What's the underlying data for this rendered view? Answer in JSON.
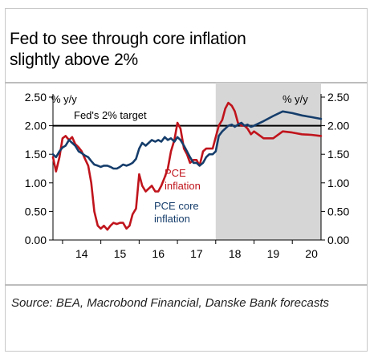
{
  "title_lines": [
    "Fed to see through core inflation",
    "slightly above 2%"
  ],
  "source": "Source: BEA, Macrobond Financial, Danske Bank forecasts",
  "chart_data": {
    "type": "line",
    "left_axis_label": "% y/y",
    "right_axis_label": "% y/y",
    "ylim": [
      0,
      2.5
    ],
    "y_ticks": [
      "0.00",
      "0.50",
      "1.00",
      "1.50",
      "2.00",
      "2.50"
    ],
    "x_ticks": [
      "14",
      "15",
      "16",
      "17",
      "18",
      "19",
      "20"
    ],
    "xlim": [
      2013.75,
      2020.75
    ],
    "forecast_start": 2018.0,
    "grid": false,
    "reference_line": {
      "value": 2.0,
      "label": "Fed's 2% target"
    },
    "series": [
      {
        "name": "PCE inflation",
        "name_lines": [
          "PCE",
          "inflation"
        ],
        "color": "#c0141c",
        "x": [
          2013.75,
          2013.83,
          2013.92,
          2014.0,
          2014.08,
          2014.17,
          2014.25,
          2014.33,
          2014.42,
          2014.5,
          2014.58,
          2014.67,
          2014.75,
          2014.83,
          2014.92,
          2015.0,
          2015.08,
          2015.17,
          2015.25,
          2015.33,
          2015.42,
          2015.5,
          2015.58,
          2015.67,
          2015.75,
          2015.83,
          2015.92,
          2016.0,
          2016.08,
          2016.17,
          2016.25,
          2016.33,
          2016.42,
          2016.5,
          2016.58,
          2016.67,
          2016.75,
          2016.83,
          2016.92,
          2017.0,
          2017.08,
          2017.17,
          2017.25,
          2017.33,
          2017.42,
          2017.5,
          2017.58,
          2017.67,
          2017.75,
          2017.83,
          2017.92,
          2018.0,
          2018.08,
          2018.17,
          2018.25,
          2018.33,
          2018.42,
          2018.5,
          2018.58,
          2018.67,
          2018.75,
          2018.83,
          2018.92,
          2019.0,
          2019.25,
          2019.5,
          2019.75,
          2020.0,
          2020.25,
          2020.5,
          2020.75
        ],
        "values": [
          1.45,
          1.2,
          1.45,
          1.78,
          1.82,
          1.75,
          1.8,
          1.68,
          1.62,
          1.55,
          1.43,
          1.3,
          1.0,
          0.5,
          0.25,
          0.2,
          0.25,
          0.18,
          0.25,
          0.3,
          0.28,
          0.3,
          0.3,
          0.2,
          0.25,
          0.45,
          0.55,
          1.15,
          0.95,
          0.85,
          0.9,
          0.95,
          0.85,
          0.85,
          0.95,
          1.1,
          1.25,
          1.55,
          1.75,
          2.05,
          1.95,
          1.6,
          1.5,
          1.35,
          1.4,
          1.4,
          1.3,
          1.55,
          1.6,
          1.6,
          1.6,
          1.8,
          2.0,
          2.1,
          2.3,
          2.4,
          2.35,
          2.25,
          2.05,
          2.0,
          2.0,
          1.95,
          1.85,
          1.9,
          1.78,
          1.78,
          1.9,
          1.88,
          1.85,
          1.84,
          1.82
        ]
      },
      {
        "name": "PCE core inflation",
        "name_lines": [
          "PCE core",
          "inflation"
        ],
        "color": "#153d6b",
        "x": [
          2013.75,
          2013.83,
          2013.92,
          2014.0,
          2014.08,
          2014.17,
          2014.25,
          2014.33,
          2014.42,
          2014.5,
          2014.58,
          2014.67,
          2014.75,
          2014.83,
          2014.92,
          2015.0,
          2015.08,
          2015.17,
          2015.25,
          2015.33,
          2015.42,
          2015.5,
          2015.58,
          2015.67,
          2015.75,
          2015.83,
          2015.92,
          2016.0,
          2016.08,
          2016.17,
          2016.25,
          2016.33,
          2016.42,
          2016.5,
          2016.58,
          2016.67,
          2016.75,
          2016.83,
          2016.92,
          2017.0,
          2017.08,
          2017.17,
          2017.25,
          2017.33,
          2017.42,
          2017.5,
          2017.58,
          2017.67,
          2017.75,
          2017.83,
          2017.92,
          2018.0,
          2018.08,
          2018.17,
          2018.25,
          2018.33,
          2018.42,
          2018.5,
          2018.58,
          2018.67,
          2018.75,
          2018.83,
          2018.92,
          2019.0,
          2019.25,
          2019.5,
          2019.75,
          2020.0,
          2020.25,
          2020.5,
          2020.75
        ],
        "values": [
          1.5,
          1.45,
          1.55,
          1.62,
          1.65,
          1.75,
          1.7,
          1.65,
          1.55,
          1.52,
          1.48,
          1.45,
          1.38,
          1.32,
          1.3,
          1.28,
          1.3,
          1.3,
          1.28,
          1.25,
          1.25,
          1.28,
          1.32,
          1.3,
          1.32,
          1.35,
          1.42,
          1.6,
          1.7,
          1.65,
          1.7,
          1.75,
          1.72,
          1.75,
          1.72,
          1.8,
          1.75,
          1.78,
          1.72,
          1.8,
          1.75,
          1.65,
          1.55,
          1.45,
          1.35,
          1.35,
          1.3,
          1.35,
          1.45,
          1.5,
          1.5,
          1.55,
          1.82,
          1.9,
          1.95,
          2.0,
          2.02,
          1.98,
          2.02,
          2.05,
          2.0,
          2.02,
          1.98,
          2.0,
          2.08,
          2.17,
          2.25,
          2.22,
          2.18,
          2.15,
          2.12
        ]
      }
    ]
  }
}
